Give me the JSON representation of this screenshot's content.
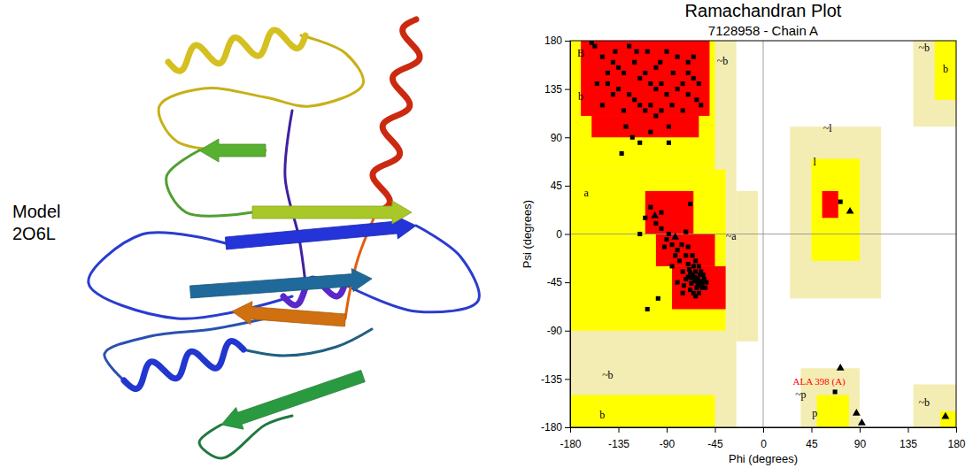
{
  "model": {
    "label": [
      "Model",
      "2O6L"
    ]
  },
  "chart_data": {
    "type": "scatter",
    "title": "Ramachandran Plot",
    "subtitle": "7128958 - Chain A",
    "xlabel": "Phi (degrees)",
    "ylabel": "Psi (degrees)",
    "xlim": [
      -180,
      180
    ],
    "ylim": [
      -180,
      180
    ],
    "xticks": [
      -180,
      -135,
      -90,
      -45,
      0,
      45,
      90,
      135,
      180
    ],
    "yticks": [
      -180,
      -135,
      -90,
      -45,
      0,
      45,
      90,
      135,
      180
    ],
    "grid": false,
    "regions": [
      {
        "color": "#f3edb3",
        "rects": [
          [
            -180,
            -25,
            -180,
            180
          ],
          [
            -25,
            -5,
            -100,
            40
          ],
          [
            25,
            110,
            -60,
            100
          ],
          [
            35,
            90,
            -180,
            -125
          ],
          [
            140,
            180,
            100,
            180
          ],
          [
            140,
            180,
            -180,
            -140
          ]
        ]
      },
      {
        "color": "#ffff00",
        "rects": [
          [
            -180,
            -45,
            60,
            180
          ],
          [
            -180,
            -35,
            -90,
            60
          ],
          [
            -180,
            -45,
            -180,
            -150
          ],
          [
            45,
            90,
            -25,
            70
          ],
          [
            50,
            80,
            -180,
            -150
          ],
          [
            160,
            180,
            125,
            180
          ],
          [
            165,
            180,
            -180,
            -165
          ]
        ]
      },
      {
        "color": "#ff0000",
        "rects": [
          [
            -170,
            -50,
            110,
            180
          ],
          [
            -160,
            -60,
            90,
            110
          ],
          [
            -110,
            -65,
            0,
            40
          ],
          [
            -100,
            -45,
            -30,
            0
          ],
          [
            -85,
            -35,
            -70,
            -30
          ],
          [
            55,
            70,
            15,
            40
          ]
        ]
      }
    ],
    "series": [
      {
        "marker": "square",
        "color": "#000000",
        "x": [
          -160,
          -157,
          -150,
          -140,
          -135,
          -130,
          -120,
          -115,
          -110,
          -105,
          -100,
          -95,
          -90,
          -85,
          -80,
          -75,
          -70,
          -65,
          -60,
          -135,
          -125,
          -120,
          -115,
          -110,
          -105,
          -100,
          -95,
          -130,
          -140,
          -145,
          -150,
          -155,
          -118,
          -125,
          -90,
          -80,
          -70,
          -62,
          -58,
          -128,
          -122,
          -115,
          -132,
          -105,
          -88,
          -75,
          -84,
          -138,
          -96,
          -108,
          -65,
          -70,
          -100,
          -145,
          -88,
          -64,
          -62,
          -66,
          -60,
          -58,
          -68,
          -70,
          -63,
          -61,
          -59,
          -65,
          -67,
          -72,
          -57,
          -55,
          -63,
          -66,
          -70,
          -75,
          -78,
          -80,
          -85,
          -90,
          -95,
          -88,
          -82,
          -74,
          -60,
          -58,
          -62,
          -68,
          -65,
          -56,
          -53,
          -60,
          -72,
          -76,
          -92,
          -100,
          -105,
          -95,
          -110,
          -98,
          -64,
          -61,
          -67,
          -69,
          -57,
          -54,
          -63,
          -75,
          -80,
          -70,
          -85,
          -115,
          -108,
          -68,
          -72,
          72,
          67
        ],
        "values": [
          178,
          175,
          165,
          160,
          155,
          150,
          160,
          145,
          150,
          140,
          135,
          140,
          130,
          120,
          135,
          140,
          150,
          145,
          140,
          135,
          130,
          125,
          120,
          115,
          120,
          110,
          115,
          115,
          130,
          140,
          120,
          140,
          170,
          175,
          170,
          165,
          160,
          125,
          120,
          100,
          90,
          85,
          75,
          95,
          100,
          115,
          150,
          170,
          160,
          170,
          165,
          130,
          155,
          150,
          85,
          -40,
          -42,
          -38,
          -45,
          -44,
          -36,
          -40,
          -35,
          -48,
          -38,
          -30,
          -46,
          -42,
          -50,
          -42,
          -25,
          -20,
          -28,
          -35,
          -25,
          -15,
          -10,
          -5,
          5,
          0,
          -20,
          -48,
          -30,
          -35,
          -50,
          -52,
          -55,
          -38,
          -45,
          -55,
          -20,
          -10,
          -12,
          10,
          25,
          20,
          15,
          -60,
          -44,
          -41,
          -41,
          -33,
          -46,
          -50,
          -58,
          -55,
          -45,
          -12,
          -30,
          0,
          -70,
          28,
          2,
          30,
          -147
        ]
      },
      {
        "marker": "triangle",
        "color": "#000000",
        "x": [
          -101,
          -82,
          81,
          72,
          87,
          92,
          170
        ],
        "values": [
          17,
          -3,
          21,
          -125,
          -167,
          -176,
          -170
        ]
      }
    ],
    "annotations": [
      {
        "text": "B",
        "x": -170,
        "y": 165
      },
      {
        "text": "b",
        "x": -170,
        "y": 125
      },
      {
        "text": "~b",
        "x": -38,
        "y": 158
      },
      {
        "text": "a",
        "x": -165,
        "y": 35
      },
      {
        "text": "~a",
        "x": -30,
        "y": -5
      },
      {
        "text": "~l",
        "x": 60,
        "y": 95
      },
      {
        "text": "l",
        "x": 48,
        "y": 64
      },
      {
        "text": "~p",
        "x": 35,
        "y": -153
      },
      {
        "text": "p",
        "x": 48,
        "y": -170
      },
      {
        "text": "~b",
        "x": 150,
        "y": 170
      },
      {
        "text": "b",
        "x": 170,
        "y": 150
      },
      {
        "text": "~b",
        "x": -145,
        "y": -135
      },
      {
        "text": "b",
        "x": -150,
        "y": -172
      },
      {
        "text": "~b",
        "x": 150,
        "y": -160
      },
      {
        "text": "ALA 398 (A)",
        "x": 67,
        "y": -147,
        "color": "#ff0000"
      }
    ]
  }
}
